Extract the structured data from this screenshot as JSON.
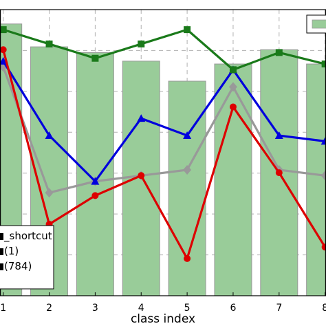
{
  "chart_data": {
    "type": "bar",
    "xlabel": "class index",
    "ylabel": "",
    "title": "",
    "categories": [
      "1",
      "2",
      "3",
      "4",
      "5",
      "6",
      "7",
      "8"
    ],
    "xlim": [
      0.9,
      8.05
    ],
    "ylim": [
      0,
      1
    ],
    "grid": true,
    "bars": {
      "values": [
        0.95,
        0.87,
        0.85,
        0.82,
        0.75,
        0.81,
        0.86,
        0.81
      ],
      "color": "#99cc99",
      "edge_color": "#999999"
    },
    "series": [
      {
        "values": [
          0.93,
          0.88,
          0.83,
          0.88,
          0.93,
          0.79,
          0.85,
          0.81
        ],
        "color": "#1a7a1a",
        "marker": "square"
      },
      {
        "values": [
          0.82,
          0.56,
          0.4,
          0.62,
          0.56,
          0.79,
          0.56,
          0.54
        ],
        "color": "#0000dd",
        "marker": "triangle"
      },
      {
        "values": [
          0.8,
          0.36,
          0.4,
          0.42,
          0.44,
          0.73,
          0.44,
          0.42
        ],
        "color": "#999999",
        "marker": "diamond"
      },
      {
        "values": [
          0.86,
          0.25,
          0.35,
          0.42,
          0.13,
          0.66,
          0.43,
          0.17
        ],
        "color": "#dd0000",
        "marker": "circle"
      }
    ],
    "legend": {
      "placement": "lower-left",
      "entries": [
        "_shortcut",
        "(1)",
        "(784)"
      ]
    },
    "top_right_legend_patch_color": "#99cc99"
  }
}
